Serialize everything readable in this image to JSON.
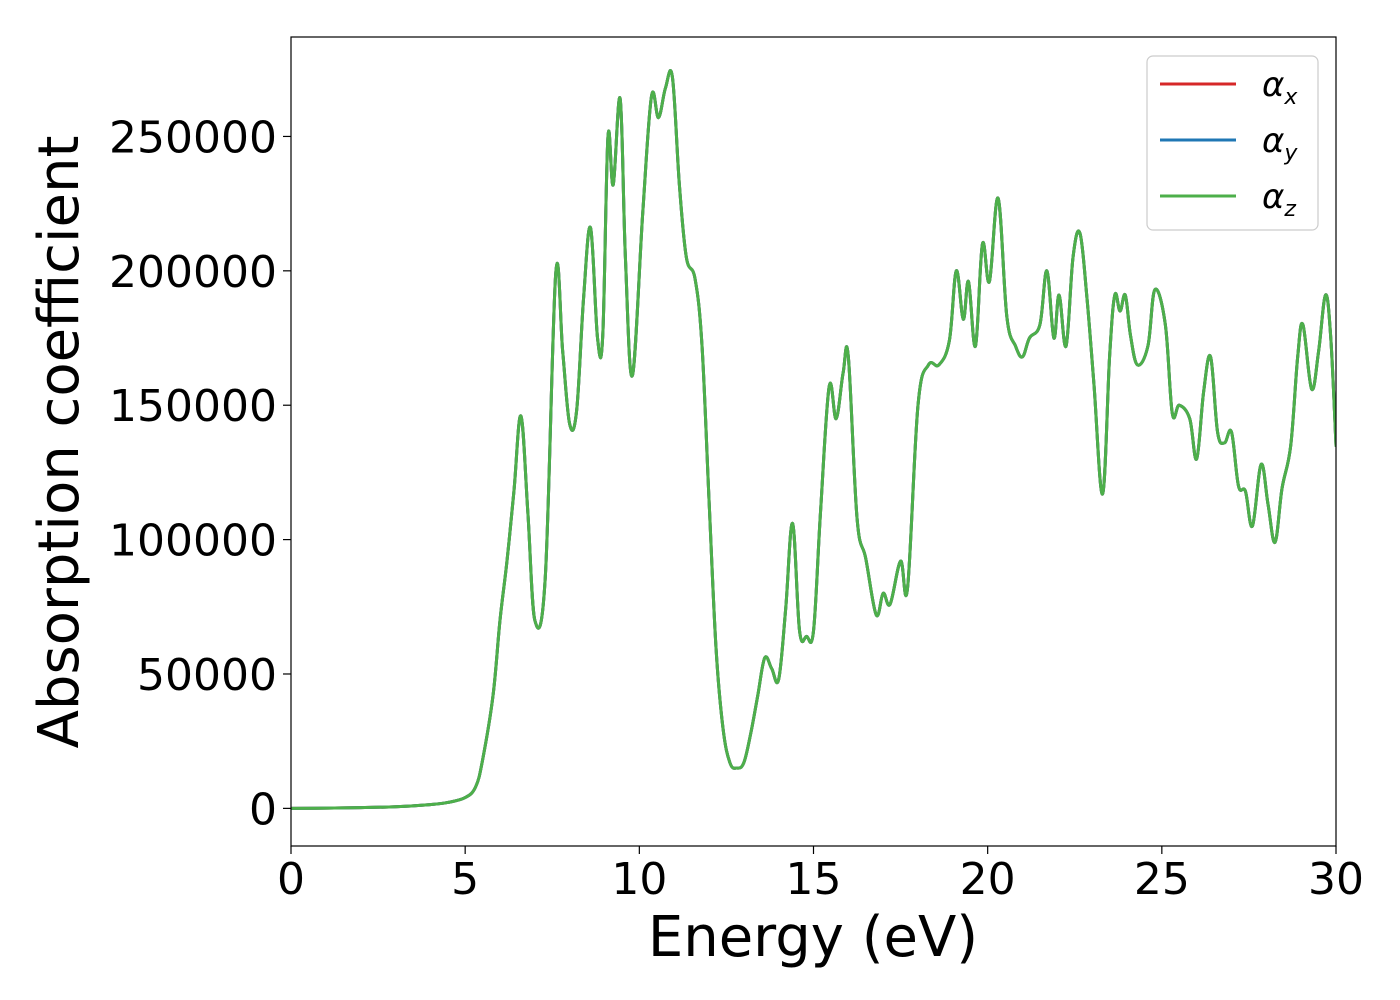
{
  "chart_data": {
    "type": "line",
    "title": "",
    "xlabel": "Energy (eV)",
    "ylabel": "Absorption coefficient",
    "xlim": [
      0,
      30
    ],
    "ylim": [
      -14000,
      287000
    ],
    "xticks": [
      0,
      5,
      10,
      15,
      20,
      25,
      30
    ],
    "yticks": [
      0,
      50000,
      100000,
      150000,
      200000,
      250000
    ],
    "grid": false,
    "legend": "top-right",
    "x": [
      0,
      1,
      2,
      3,
      4,
      4.5,
      5,
      5.3,
      5.5,
      5.8,
      6.0,
      6.2,
      6.4,
      6.6,
      6.8,
      7.0,
      7.3,
      7.6,
      7.8,
      8.0,
      8.2,
      8.4,
      8.6,
      8.8,
      8.95,
      9.1,
      9.25,
      9.45,
      9.6,
      9.8,
      10.1,
      10.35,
      10.55,
      10.75,
      10.95,
      11.15,
      11.35,
      11.6,
      11.8,
      12.0,
      12.2,
      12.4,
      12.6,
      12.8,
      13.0,
      13.2,
      13.4,
      13.6,
      13.8,
      14.0,
      14.2,
      14.4,
      14.6,
      14.8,
      15.0,
      15.2,
      15.45,
      15.65,
      15.85,
      16.0,
      16.25,
      16.5,
      16.8,
      17.0,
      17.2,
      17.5,
      17.7,
      18.0,
      18.3,
      18.6,
      18.9,
      19.1,
      19.3,
      19.45,
      19.65,
      19.85,
      20.05,
      20.3,
      20.55,
      20.8,
      21.0,
      21.2,
      21.5,
      21.7,
      21.9,
      22.05,
      22.25,
      22.45,
      22.65,
      22.85,
      23.05,
      23.3,
      23.5,
      23.65,
      23.8,
      23.95,
      24.1,
      24.3,
      24.6,
      24.8,
      25.1,
      25.3,
      25.5,
      25.8,
      26.0,
      26.2,
      26.4,
      26.6,
      26.8,
      27.0,
      27.2,
      27.4,
      27.6,
      27.85,
      28.05,
      28.25,
      28.45,
      28.7,
      28.9,
      29.05,
      29.3,
      29.5,
      29.7,
      29.85,
      30.0
    ],
    "series": [
      {
        "name": "α_x",
        "color": "#d62728",
        "values": [
          0,
          100,
          300,
          600,
          1400,
          2200,
          4000,
          8000,
          18000,
          42000,
          70000,
          92000,
          118000,
          146000,
          110000,
          70000,
          86000,
          199000,
          170000,
          143000,
          148000,
          190000,
          216000,
          175000,
          176000,
          250000,
          232000,
          264000,
          205000,
          161000,
          222000,
          265000,
          257000,
          268000,
          272000,
          232000,
          205000,
          197000,
          172000,
          115000,
          60000,
          30000,
          17000,
          15000,
          17000,
          28000,
          42000,
          56000,
          52000,
          48000,
          74000,
          106000,
          66000,
          64000,
          66000,
          110000,
          157000,
          145000,
          162000,
          168000,
          108000,
          93000,
          72000,
          80000,
          76000,
          92000,
          82000,
          150000,
          165000,
          165000,
          174000,
          200000,
          182000,
          196000,
          172000,
          210000,
          196000,
          227000,
          183000,
          172000,
          168000,
          175000,
          180000,
          200000,
          175000,
          191000,
          172000,
          205000,
          214000,
          190000,
          158000,
          117000,
          168000,
          191000,
          185000,
          191000,
          176000,
          165000,
          172000,
          193000,
          180000,
          147000,
          150000,
          145000,
          130000,
          155000,
          168000,
          140000,
          136000,
          140000,
          120000,
          118000,
          105000,
          128000,
          113000,
          99000,
          119000,
          135000,
          168000,
          180000,
          156000,
          170000,
          191000,
          175000,
          135000
        ]
      },
      {
        "name": "α_y",
        "color": "#1f77b4",
        "values": [
          0,
          100,
          300,
          600,
          1400,
          2200,
          4000,
          8000,
          18000,
          42000,
          70000,
          92000,
          118000,
          146000,
          110000,
          70000,
          86000,
          199000,
          170000,
          143000,
          148000,
          190000,
          216000,
          175000,
          176000,
          250000,
          232000,
          264000,
          205000,
          161000,
          222000,
          265000,
          257000,
          268000,
          272000,
          232000,
          205000,
          197000,
          172000,
          115000,
          60000,
          30000,
          17000,
          15000,
          17000,
          28000,
          42000,
          56000,
          52000,
          48000,
          74000,
          106000,
          66000,
          64000,
          66000,
          110000,
          157000,
          145000,
          162000,
          168000,
          108000,
          93000,
          72000,
          80000,
          76000,
          92000,
          82000,
          150000,
          165000,
          165000,
          174000,
          200000,
          182000,
          196000,
          172000,
          210000,
          196000,
          227000,
          183000,
          172000,
          168000,
          175000,
          180000,
          200000,
          175000,
          191000,
          172000,
          205000,
          214000,
          190000,
          158000,
          117000,
          168000,
          191000,
          185000,
          191000,
          176000,
          165000,
          172000,
          193000,
          180000,
          147000,
          150000,
          145000,
          130000,
          155000,
          168000,
          140000,
          136000,
          140000,
          120000,
          118000,
          105000,
          128000,
          113000,
          99000,
          119000,
          135000,
          168000,
          180000,
          156000,
          170000,
          191000,
          175000,
          135000
        ]
      },
      {
        "name": "α_z",
        "color": "#4daf4a",
        "values": [
          0,
          100,
          300,
          600,
          1400,
          2200,
          4000,
          8000,
          18000,
          42000,
          70000,
          92000,
          118000,
          146000,
          110000,
          70000,
          86000,
          199000,
          170000,
          143000,
          148000,
          190000,
          216000,
          175000,
          176000,
          250000,
          232000,
          264000,
          205000,
          161000,
          222000,
          265000,
          257000,
          268000,
          272000,
          232000,
          205000,
          197000,
          172000,
          115000,
          60000,
          30000,
          17000,
          15000,
          17000,
          28000,
          42000,
          56000,
          52000,
          48000,
          74000,
          106000,
          66000,
          64000,
          66000,
          110000,
          157000,
          145000,
          162000,
          168000,
          108000,
          93000,
          72000,
          80000,
          76000,
          92000,
          82000,
          150000,
          165000,
          165000,
          174000,
          200000,
          182000,
          196000,
          172000,
          210000,
          196000,
          227000,
          183000,
          172000,
          168000,
          175000,
          180000,
          200000,
          175000,
          191000,
          172000,
          205000,
          214000,
          190000,
          158000,
          117000,
          168000,
          191000,
          185000,
          191000,
          176000,
          165000,
          172000,
          193000,
          180000,
          147000,
          150000,
          145000,
          130000,
          155000,
          168000,
          140000,
          136000,
          140000,
          120000,
          118000,
          105000,
          128000,
          113000,
          99000,
          119000,
          135000,
          168000,
          180000,
          156000,
          170000,
          191000,
          175000,
          135000
        ]
      }
    ]
  },
  "legend": {
    "entries": [
      {
        "symbol": "α",
        "sub": "x",
        "color": "#d62728"
      },
      {
        "symbol": "α",
        "sub": "y",
        "color": "#1f77b4"
      },
      {
        "symbol": "α",
        "sub": "z",
        "color": "#4daf4a"
      }
    ]
  }
}
